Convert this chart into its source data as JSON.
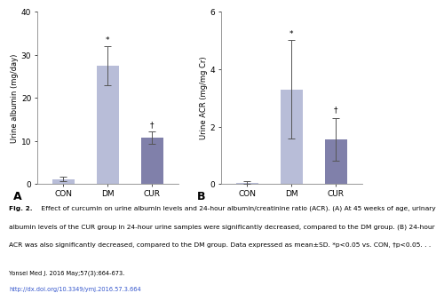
{
  "panel_A": {
    "categories": [
      "CON",
      "DM",
      "CUR"
    ],
    "values": [
      1.2,
      27.5,
      10.8
    ],
    "errors": [
      0.5,
      4.5,
      1.5
    ],
    "bar_colors": [
      "#b8bdd8",
      "#b8bdd8",
      "#8080aa"
    ],
    "ylabel": "Urine albumin (mg/day)",
    "ylim": [
      0,
      40
    ],
    "yticks": [
      0,
      10,
      20,
      30,
      40
    ],
    "label": "A",
    "star_positions": {
      "DM": "*",
      "CUR": "†"
    },
    "star_y": {
      "DM": 32.5,
      "CUR": 12.8
    }
  },
  "panel_B": {
    "categories": [
      "CON",
      "DM",
      "CUR"
    ],
    "values": [
      0.05,
      3.3,
      1.55
    ],
    "errors": [
      0.05,
      1.7,
      0.75
    ],
    "bar_colors": [
      "#b8bdd8",
      "#b8bdd8",
      "#8080aa"
    ],
    "ylabel": "Urine ACR (mg/mg Cr)",
    "ylim": [
      0,
      6
    ],
    "yticks": [
      0,
      2,
      4,
      6
    ],
    "label": "B",
    "star_positions": {
      "DM": "*",
      "CUR": "†"
    },
    "star_y": {
      "DM": 5.1,
      "CUR": 2.45
    }
  },
  "caption_bold": "Fig. 2.",
  "caption_rest_line1": " Effect of curcumin on urine albumin levels and 24-hour albumin/creatinine ratio (ACR). (A) At 45 weeks of age, urinary",
  "caption_line2": "albumin levels of the CUR group in 24-hour urine samples were significantly decreased, compared to the DM group. (B) 24-hour",
  "caption_line3": "ACR was also significantly decreased, compared to the DM group. Data expressed as mean±SD. *p<0.05 vs. CON, †p<0.05. . .",
  "journal_line": "Yonsei Med J. 2016 May;57(3):664-673.",
  "doi_line": "http://dx.doi.org/10.3349/ymj.2016.57.3.664",
  "background_color": "#ffffff",
  "bar_width": 0.5,
  "capsize": 3
}
